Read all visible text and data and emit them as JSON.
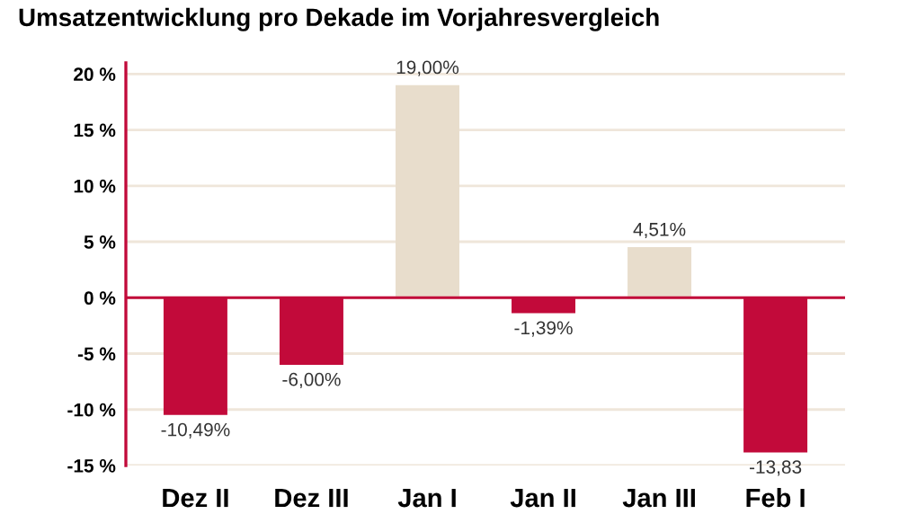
{
  "chart_data": {
    "type": "bar",
    "title": "Umsatzentwicklung pro Dekade im Vorjahresvergleich",
    "categories": [
      "Dez II",
      "Dez III",
      "Jan I",
      "Jan II",
      "Jan III",
      "Feb I"
    ],
    "values": [
      -10.49,
      -6.0,
      19.0,
      -1.39,
      4.51,
      -13.83
    ],
    "colors": [
      "#c20a3a",
      "#c20a3a",
      "#e8ddcc",
      "#c20a3a",
      "#e8ddcc",
      "#c20a3a"
    ],
    "value_labels": [
      "-10,49%",
      "-6,00%",
      "19,00%",
      "-1,39%",
      "4,51%",
      "-13,83"
    ],
    "ylim": [
      -15,
      21
    ],
    "yticks": [
      {
        "value": -15,
        "label": "-15 %"
      },
      {
        "value": -10,
        "label": "-10 %"
      },
      {
        "value": -5,
        "label": "-5 %"
      },
      {
        "value": 0,
        "label": "0 %"
      },
      {
        "value": 5,
        "label": "5 %"
      },
      {
        "value": 10,
        "label": "10 %"
      },
      {
        "value": 15,
        "label": "15 %"
      },
      {
        "value": 20,
        "label": "20 %"
      }
    ],
    "ref_lines": [
      {
        "axis": "y",
        "value": 0,
        "color": "#c20a3a"
      }
    ],
    "grid": "y",
    "legend": false
  }
}
